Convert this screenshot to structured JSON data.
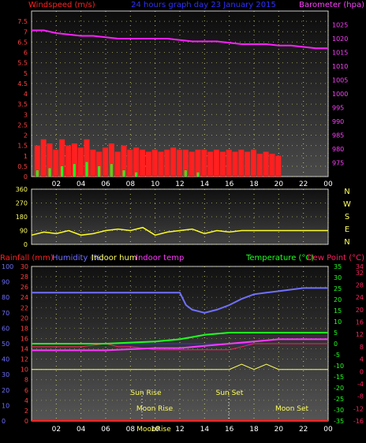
{
  "header": {
    "left": "Windspeed (m/s)",
    "center": "24 hours graph day  23 January 2015",
    "right": "Barometer (hpa)"
  },
  "x_ticks": [
    "02",
    "04",
    "06",
    "08",
    "10",
    "12",
    "14",
    "16",
    "18",
    "20",
    "22",
    "00"
  ],
  "panel2_right_labels": [
    "N",
    "W",
    "S",
    "E",
    "N"
  ],
  "panel3_header": {
    "rainfall": "Rainfall (mm)",
    "humidity": "Humidity (%)",
    "indoor_hum": "Indoor hum",
    "indoor_temp": "Indoor temp",
    "temperature": "Temperature (°C)",
    "dew_point": "Dew Point (°C)"
  },
  "event_labels": {
    "sun_rise": "Sun Rise",
    "sun_set": "Sun Set",
    "moon_rise": "Moon Rise",
    "moon_set": "Moon Set",
    "moon_date": "MoonRise"
  },
  "colors": {
    "wind": "#ff2020",
    "gust": "#20ff20",
    "pressure": "#ff20ff",
    "direction": "#ffff20",
    "rainfall": "#ff2020",
    "humidity": "#7070ff",
    "indoor_hum": "#ffff60",
    "indoor_temp": "#ff3aff",
    "temperature": "#20ff20",
    "dew_point": "#ff2060",
    "axis_text": "#ff4040",
    "grid": "#ffff80"
  },
  "chart_data": [
    {
      "type": "bar",
      "title": "24 hours graph day  23 January 2015",
      "ylabel_left": "Windspeed (m/s)",
      "ylabel_right": "Barometer (hpa)",
      "xlim_hours": [
        0,
        24
      ],
      "ylim_left": [
        0,
        8
      ],
      "ylim_right": [
        970,
        1030
      ],
      "yticks_left": [
        "0",
        "0.5",
        "1",
        "1.5",
        "2",
        "2.5",
        "3",
        "3.5",
        "4",
        "4.5",
        "5",
        "5.5",
        "6",
        "6.5",
        "7",
        "7.5"
      ],
      "yticks_right": [
        "975",
        "980",
        "985",
        "990",
        "995",
        "1000",
        "1005",
        "1010",
        "1015",
        "1020",
        "1025"
      ],
      "series": [
        {
          "name": "Windspeed",
          "hours": [
            0.5,
            1,
            1.5,
            2,
            2.5,
            3,
            3.5,
            4,
            4.5,
            5,
            5.5,
            6,
            6.5,
            7,
            7.5,
            8,
            8.5,
            9,
            9.5,
            10,
            10.5,
            11,
            11.5,
            12,
            12.5,
            13,
            13.5,
            14,
            14.5,
            15,
            15.5,
            16,
            16.5,
            17,
            17.5,
            18,
            18.5,
            19,
            19.5,
            20
          ],
          "values": [
            1.5,
            1.8,
            1.6,
            1.3,
            1.8,
            1.5,
            1.6,
            1.4,
            1.8,
            1.3,
            1.2,
            1.4,
            1.6,
            1.2,
            1.5,
            1.3,
            1.4,
            1.3,
            1.2,
            1.3,
            1.2,
            1.3,
            1.4,
            1.3,
            1.3,
            1.2,
            1.3,
            1.3,
            1.2,
            1.3,
            1.2,
            1.3,
            1.2,
            1.3,
            1.2,
            1.3,
            1.1,
            1.2,
            1.1,
            1.0
          ]
        },
        {
          "name": "Gust",
          "hours": [
            0.5,
            1.5,
            2.5,
            3.5,
            4.5,
            5.5,
            6.5,
            7.5,
            8.5,
            12.5,
            13.5
          ],
          "values": [
            0.3,
            0.4,
            0.5,
            0.6,
            0.7,
            0.5,
            0.6,
            0.3,
            0.2,
            0.3,
            0.2
          ]
        },
        {
          "name": "Barometer",
          "hours": [
            0,
            1,
            2,
            3,
            4,
            5,
            6,
            7,
            8,
            9,
            10,
            11,
            12,
            13,
            14,
            15,
            16,
            17,
            18,
            19,
            20,
            21,
            22,
            23,
            24
          ],
          "values": [
            1023,
            1023,
            1022,
            1021.5,
            1021,
            1021,
            1020.5,
            1020,
            1020,
            1020,
            1020,
            1020,
            1019.5,
            1019,
            1019,
            1019,
            1018.5,
            1018,
            1018,
            1018,
            1017.5,
            1017.5,
            1017,
            1016.5,
            1016.5
          ]
        }
      ]
    },
    {
      "type": "scatter",
      "title": "",
      "ylabel": "Wind direction",
      "xlim_hours": [
        0,
        24
      ],
      "ylim": [
        0,
        360
      ],
      "yticks": [
        "0",
        "90",
        "180",
        "270",
        "360"
      ],
      "series": [
        {
          "name": "Direction",
          "hours": [
            0,
            1,
            2,
            3,
            4,
            5,
            6,
            7,
            8,
            9,
            10,
            11,
            12,
            13,
            14,
            15,
            16,
            17,
            18,
            19,
            20,
            21,
            22,
            23,
            24
          ],
          "values": [
            60,
            80,
            70,
            90,
            60,
            70,
            90,
            100,
            90,
            110,
            60,
            80,
            90,
            100,
            70,
            90,
            80,
            90,
            90,
            90,
            90,
            90,
            90,
            90,
            90
          ]
        }
      ]
    },
    {
      "type": "line",
      "title": "",
      "xlim_hours": [
        0,
        24
      ],
      "yticks_rain": [
        "0",
        "2",
        "4",
        "6",
        "8",
        "10",
        "12",
        "14",
        "16",
        "18",
        "20",
        "22",
        "24",
        "26",
        "28",
        "30"
      ],
      "yticks_humidity": [
        "0",
        "10",
        "20",
        "30",
        "40",
        "50",
        "60",
        "70",
        "80",
        "90",
        "100"
      ],
      "yticks_temp": [
        "-35",
        "-30",
        "-25",
        "-20",
        "-15",
        "-10",
        "-5",
        "0",
        "5",
        "10",
        "15",
        "20",
        "25",
        "30",
        "35"
      ],
      "yticks_dew": [
        "-16",
        "-12",
        "-8",
        "-4",
        "0",
        "4",
        "8",
        "12",
        "16",
        "20",
        "24",
        "28",
        "32",
        "34"
      ],
      "series": [
        {
          "name": "Humidity",
          "hours": [
            0,
            2,
            4,
            6,
            8,
            10,
            12,
            12.5,
            13,
            14,
            15,
            16,
            17,
            18,
            19,
            20,
            21,
            22,
            23,
            24
          ],
          "values": [
            83,
            83,
            83,
            83,
            83,
            83,
            83,
            75,
            72,
            70,
            72,
            75,
            79,
            82,
            83,
            84,
            85,
            86,
            86,
            86
          ]
        },
        {
          "name": "Temperature",
          "hours": [
            0,
            2,
            4,
            6,
            8,
            10,
            12,
            13,
            14,
            16,
            18,
            20,
            22,
            24
          ],
          "values": [
            0,
            0,
            0,
            0,
            0.5,
            1,
            2,
            3,
            4,
            5,
            5,
            5,
            5,
            5
          ]
        },
        {
          "name": "Indoor temp",
          "hours": [
            0,
            2,
            4,
            6,
            8,
            10,
            12,
            14,
            16,
            18,
            20,
            22,
            24
          ],
          "values": [
            -3,
            -3,
            -3,
            -3,
            -2.5,
            -2,
            -2,
            -1,
            0,
            1,
            2,
            2,
            2
          ]
        },
        {
          "name": "Dew Point",
          "hours": [
            0,
            2,
            4,
            6,
            7,
            8,
            10,
            12,
            14,
            16,
            18,
            20,
            22,
            24
          ],
          "values": [
            8,
            8,
            8,
            9,
            8,
            8,
            7,
            7,
            7,
            7,
            9,
            9,
            9,
            9
          ]
        },
        {
          "name": "Indoor hum",
          "hours": [
            0,
            2,
            4,
            6,
            8,
            10,
            12,
            14,
            16,
            17,
            18,
            19,
            20,
            22,
            24
          ],
          "values": [
            10,
            10,
            10,
            10,
            10,
            10,
            10,
            10,
            10,
            11,
            10,
            11,
            10,
            10,
            10
          ]
        },
        {
          "name": "Rainfall",
          "hours": [
            0,
            24
          ],
          "values": [
            0,
            0
          ]
        }
      ]
    }
  ]
}
